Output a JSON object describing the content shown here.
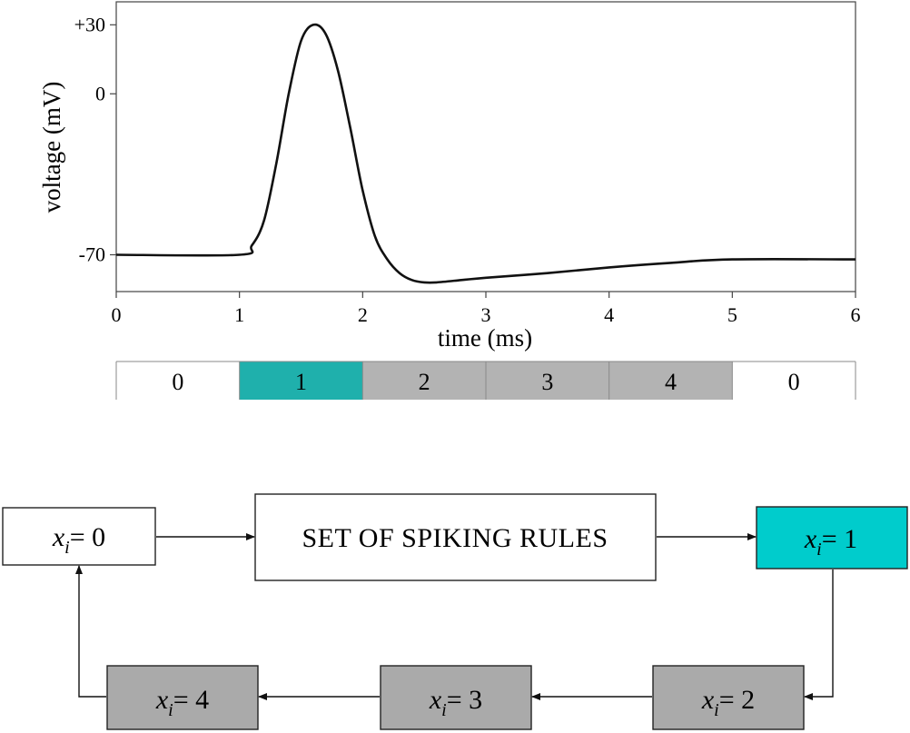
{
  "chart_data": {
    "type": "line",
    "ylabel": "voltage (mV)",
    "xlabel": "time (ms)",
    "xlim": [
      0,
      6
    ],
    "ylim": [
      -86,
      40
    ],
    "xticks": [
      0,
      1,
      2,
      3,
      4,
      5,
      6
    ],
    "xtick_labels": [
      "0",
      "1",
      "2",
      "3",
      "4",
      "5",
      "6"
    ],
    "yticks": [
      30,
      0,
      -70
    ],
    "ytick_labels": [
      "+30",
      "0",
      "-70"
    ],
    "series": [
      {
        "x": [
          0,
          1.0,
          1.1,
          1.2,
          1.3,
          1.4,
          1.5,
          1.6,
          1.7,
          1.8,
          1.9,
          2.0,
          2.1,
          2.2,
          2.3,
          2.4,
          2.5,
          2.6,
          2.8,
          3.0,
          3.5,
          4.0,
          4.5,
          5.0,
          6.0
        ],
        "y": [
          -70,
          -70,
          -66,
          -55,
          -30,
          0,
          23,
          30,
          26,
          10,
          -15,
          -42,
          -62,
          -72,
          -78,
          -81,
          -82,
          -82,
          -81,
          -80,
          -78,
          -75.5,
          -73.5,
          -72,
          -72
        ],
        "color": "#111111"
      }
    ],
    "grid": false
  },
  "state_strip": {
    "segments": [
      {
        "label": "0",
        "color": "#ffffff"
      },
      {
        "label": "1",
        "color": "#1fb0ac"
      },
      {
        "label": "2",
        "color": "#b3b3b3"
      },
      {
        "label": "3",
        "color": "#b3b3b3"
      },
      {
        "label": "4",
        "color": "#b3b3b3"
      },
      {
        "label": "0",
        "color": "#ffffff"
      }
    ]
  },
  "flow": {
    "var_letter": "x",
    "var_sub": "i",
    "equals": "= ",
    "rules_label": "SET OF SPIKING RULES",
    "states": [
      {
        "value": "0",
        "color": "#ffffff"
      },
      {
        "value": "1",
        "color": "#00cccc"
      },
      {
        "value": "2",
        "color": "#aaaaaa"
      },
      {
        "value": "3",
        "color": "#aaaaaa"
      },
      {
        "value": "4",
        "color": "#aaaaaa"
      }
    ]
  }
}
